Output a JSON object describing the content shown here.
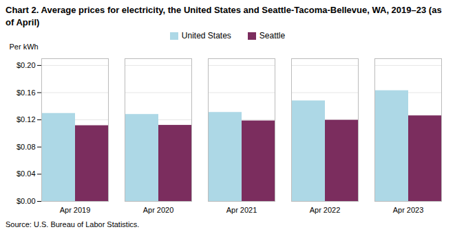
{
  "chart_data": {
    "type": "bar",
    "title": "Chart 2. Average prices for electricity, the United States and Seattle-Tacoma-Bellevue, WA, 2019–23 (as of April)",
    "ylabel": "Per kWh",
    "source": "Source: U.S. Bureau of Labor Statistics.",
    "categories": [
      "Apr 2019",
      "Apr 2020",
      "Apr 2021",
      "Apr 2022",
      "Apr 2023"
    ],
    "series": [
      {
        "name": "United States",
        "color": "#add8e6",
        "values": [
          0.1295,
          0.128,
          0.131,
          0.148,
          0.163
        ]
      },
      {
        "name": "Seattle",
        "color": "#7b2d5e",
        "values": [
          0.1115,
          0.112,
          0.1185,
          0.1195,
          0.126
        ]
      }
    ],
    "ylim": [
      0,
      0.21
    ],
    "yticks": [
      {
        "value": 0.0,
        "label": "$0.00"
      },
      {
        "value": 0.04,
        "label": "$0.04"
      },
      {
        "value": 0.08,
        "label": "$0.08"
      },
      {
        "value": 0.12,
        "label": "$0.12"
      },
      {
        "value": 0.16,
        "label": "$0.16"
      },
      {
        "value": 0.2,
        "label": "$0.20"
      }
    ],
    "grid": true,
    "legend": "top"
  }
}
